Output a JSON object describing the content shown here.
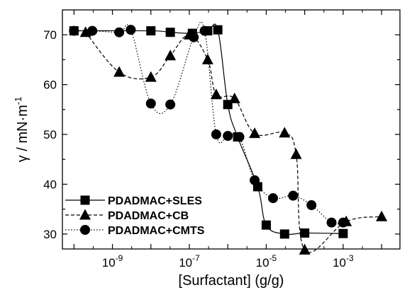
{
  "chart_data": {
    "type": "scatter",
    "xlabel": "[Surfactant] (g/g)",
    "ylabel": "γ / mN·m",
    "ylabel_sup": "-1",
    "x_scale": "log",
    "xlim": [
      5e-11,
      0.03
    ],
    "ylim": [
      27,
      75
    ],
    "x_ticks": [
      {
        "value": 1e-09,
        "base": "10",
        "exp": "-9"
      },
      {
        "value": 1e-07,
        "base": "10",
        "exp": "-7"
      },
      {
        "value": 1e-05,
        "base": "10",
        "exp": "-5"
      },
      {
        "value": 0.001,
        "base": "10",
        "exp": "-3"
      }
    ],
    "y_ticks": [
      30,
      40,
      50,
      60,
      70
    ],
    "grid": false,
    "legend_position": "bottom-left",
    "series": [
      {
        "name": "PDADMAC+SLES",
        "marker": "square",
        "line_style": "solid",
        "x": [
          1e-10,
          1e-08,
          3.2e-08,
          1.2e-07,
          3e-07,
          5.5e-07,
          1e-06,
          1.8e-06,
          6e-06,
          1e-05,
          3e-05,
          0.0001,
          0.001
        ],
        "y": [
          70.8,
          70.8,
          70.5,
          70.3,
          70.8,
          71.0,
          56.0,
          49.5,
          39.5,
          31.8,
          30.0,
          30.2,
          30.1
        ]
      },
      {
        "name": "PDADMAC+CB",
        "marker": "triangle",
        "line_style": "dashed",
        "x": [
          2e-10,
          1.5e-09,
          1e-08,
          3.2e-08,
          1e-07,
          3e-07,
          5e-07,
          1.5e-06,
          5e-06,
          3e-05,
          6e-05,
          0.0001,
          0.0012,
          0.01
        ],
        "y": [
          70.5,
          62.5,
          61.5,
          65.8,
          70.0,
          65.0,
          58.0,
          57.2,
          50.2,
          50.3,
          46.0,
          26.8,
          32.5,
          33.5
        ]
      },
      {
        "name": "PDADMAC+CMTS",
        "marker": "circle",
        "line_style": "dotted",
        "x": [
          1e-10,
          3e-10,
          1.5e-09,
          3e-09,
          1e-08,
          3.2e-08,
          1.3e-07,
          2.5e-07,
          5e-07,
          1e-06,
          2e-06,
          5e-06,
          1.5e-05,
          5e-05,
          0.00015,
          0.0005,
          0.001
        ],
        "y": [
          70.8,
          70.8,
          70.5,
          71.0,
          56.2,
          56.0,
          69.5,
          70.8,
          50.0,
          49.7,
          49.5,
          40.8,
          37.2,
          37.7,
          35.8,
          32.3,
          32.3
        ]
      }
    ]
  }
}
